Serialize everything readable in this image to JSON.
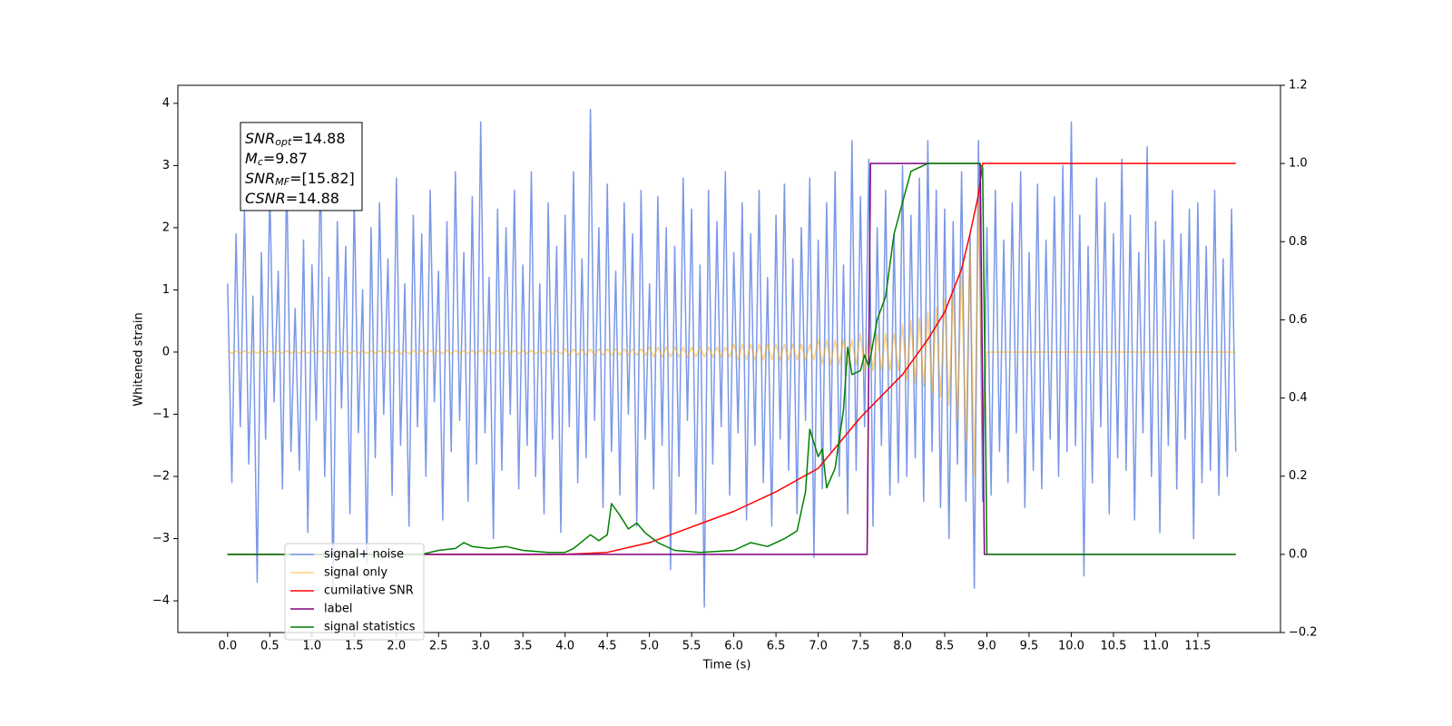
{
  "chart_data": {
    "type": "line",
    "xlabel": "Time (s)",
    "ylabel": "Whitened strain",
    "xlim": [
      -0.59,
      12.48
    ],
    "ylim": [
      -4.51,
      4.29
    ],
    "y2lim": [
      -0.2,
      1.2
    ],
    "xticks": [
      {
        "value": 0,
        "label": "0.0"
      },
      0.5,
      {
        "value": 1,
        "label": "1.0"
      },
      1.5,
      {
        "value": 2,
        "label": "2.0"
      },
      2.5,
      {
        "value": 3,
        "label": "3.0"
      },
      3.5,
      {
        "value": 4,
        "label": "4.0"
      },
      4.5,
      {
        "value": 5,
        "label": "5.0"
      },
      5.5,
      {
        "value": 6,
        "label": "6.0"
      },
      6.5,
      {
        "value": 7,
        "label": "7.0"
      },
      7.5,
      {
        "value": 8,
        "label": "8.0"
      },
      8.5,
      {
        "value": 9,
        "label": "9.0"
      },
      9.5,
      {
        "value": 10,
        "label": "10.0"
      },
      10.5,
      {
        "value": 11,
        "label": "11.0"
      },
      11.5
    ],
    "yticks": [
      {
        "value": -4,
        "label": "−4"
      },
      {
        "value": -3,
        "label": "−3"
      },
      {
        "value": -2,
        "label": "−2"
      },
      {
        "value": -1,
        "label": "−1"
      },
      0,
      1,
      2,
      3,
      4
    ],
    "y2ticks": [
      {
        "value": -0.2,
        "label": "−0.2"
      },
      {
        "value": 0,
        "label": "0.0"
      },
      0.2,
      0.4,
      0.6,
      0.8,
      {
        "value": 1,
        "label": "1.0"
      },
      1.2
    ],
    "annotation": [
      {
        "base": "SNR",
        "sub": "opt",
        "rest": "=14.88"
      },
      {
        "base": "M",
        "sub": "c",
        "rest": "=9.87"
      },
      {
        "base": "SNR",
        "sub": "MF",
        "rest": "=[15.82]"
      },
      {
        "base": "CSNR",
        "sub": null,
        "rest": "=14.88"
      }
    ],
    "x": [
      0,
      0.05,
      0.1,
      0.15,
      0.2,
      0.25,
      0.3,
      0.35,
      0.4,
      0.45,
      0.5,
      0.55,
      0.6,
      0.65,
      0.7,
      0.75,
      0.8,
      0.85,
      0.9,
      0.95,
      1,
      1.05,
      1.1,
      1.15,
      1.2,
      1.25,
      1.3,
      1.35,
      1.4,
      1.45,
      1.5,
      1.55,
      1.6,
      1.65,
      1.7,
      1.75,
      1.8,
      1.85,
      1.9,
      1.95,
      2,
      2.05,
      2.1,
      2.15,
      2.2,
      2.25,
      2.3,
      2.35,
      2.4,
      2.45,
      2.5,
      2.55,
      2.6,
      2.65,
      2.7,
      2.75,
      2.8,
      2.85,
      2.9,
      2.95,
      3,
      3.05,
      3.1,
      3.15,
      3.2,
      3.25,
      3.3,
      3.35,
      3.4,
      3.45,
      3.5,
      3.55,
      3.6,
      3.65,
      3.7,
      3.75,
      3.8,
      3.85,
      3.9,
      3.95,
      4,
      4.05,
      4.1,
      4.15,
      4.2,
      4.25,
      4.3,
      4.35,
      4.4,
      4.45,
      4.5,
      4.55,
      4.6,
      4.65,
      4.7,
      4.75,
      4.8,
      4.85,
      4.9,
      4.95,
      5,
      5.05,
      5.1,
      5.15,
      5.2,
      5.25,
      5.3,
      5.35,
      5.4,
      5.45,
      5.5,
      5.55,
      5.6,
      5.65,
      5.7,
      5.75,
      5.8,
      5.85,
      5.9,
      5.95,
      6,
      6.05,
      6.1,
      6.15,
      6.2,
      6.25,
      6.3,
      6.35,
      6.4,
      6.45,
      6.5,
      6.55,
      6.6,
      6.65,
      6.7,
      6.75,
      6.8,
      6.85,
      6.9,
      6.95,
      7,
      7.05,
      7.1,
      7.15,
      7.2,
      7.25,
      7.3,
      7.35,
      7.4,
      7.45,
      7.5,
      7.55,
      7.6,
      7.65,
      7.7,
      7.75,
      7.8,
      7.85,
      7.9,
      7.95,
      8,
      8.05,
      8.1,
      8.15,
      8.2,
      8.25,
      8.3,
      8.35,
      8.4,
      8.45,
      8.5,
      8.55,
      8.6,
      8.65,
      8.7,
      8.75,
      8.8,
      8.85,
      8.9,
      8.95,
      9,
      9.05,
      9.1,
      9.15,
      9.2,
      9.25,
      9.3,
      9.35,
      9.4,
      9.45,
      9.5,
      9.55,
      9.6,
      9.65,
      9.7,
      9.75,
      9.8,
      9.85,
      9.9,
      9.95,
      10,
      10.05,
      10.1,
      10.15,
      10.2,
      10.25,
      10.3,
      10.35,
      10.4,
      10.45,
      10.5,
      10.55,
      10.6,
      10.65,
      10.7,
      10.75,
      10.8,
      10.85,
      10.9,
      10.95,
      11,
      11.05,
      11.1,
      11.15,
      11.2,
      11.25,
      11.3,
      11.35,
      11.4,
      11.45,
      11.5,
      11.55,
      11.6,
      11.65,
      11.7,
      11.75,
      11.8,
      11.85,
      11.9,
      11.95
    ],
    "series": [
      {
        "name": "signal+ noise",
        "color": "#6b8de6",
        "opacity": 0.9,
        "values": [
          1.1,
          -2.1,
          1.9,
          -1.2,
          2.3,
          -1.8,
          0.9,
          -3.7,
          1.6,
          -1.4,
          2.6,
          -0.8,
          1.3,
          -2.2,
          2.9,
          -1.6,
          0.7,
          -1.9,
          1.8,
          -2.9,
          1.4,
          -1.1,
          3.0,
          -2.0,
          1.2,
          -3.8,
          2.1,
          -0.9,
          1.7,
          -2.6,
          2.5,
          -1.3,
          1.0,
          -3.4,
          2.0,
          -1.7,
          2.4,
          -1.0,
          1.5,
          -2.3,
          2.8,
          -1.5,
          1.1,
          -2.8,
          2.2,
          -1.2,
          1.9,
          -2.0,
          2.6,
          -0.8,
          1.3,
          -2.7,
          2.1,
          -1.6,
          2.9,
          -1.1,
          1.6,
          -2.4,
          2.5,
          -1.8,
          3.7,
          -1.3,
          1.2,
          -3.0,
          2.3,
          -1.9,
          2.0,
          -1.0,
          2.6,
          -2.2,
          1.4,
          -1.5,
          2.9,
          -2.0,
          1.1,
          -2.6,
          2.4,
          -1.4,
          1.7,
          -2.9,
          2.2,
          -1.2,
          2.9,
          -2.1,
          1.5,
          -1.7,
          3.9,
          -1.1,
          2.0,
          -2.5,
          2.7,
          -1.6,
          1.3,
          -2.3,
          2.4,
          -1.0,
          1.9,
          -2.8,
          2.6,
          -1.4,
          1.1,
          -2.2,
          2.5,
          -1.5,
          2.0,
          -3.5,
          1.7,
          -2.0,
          2.8,
          -1.1,
          2.3,
          -2.6,
          1.4,
          -4.1,
          2.6,
          -1.8,
          2.1,
          -1.2,
          2.9,
          -2.3,
          1.6,
          -1.3,
          2.4,
          -2.7,
          1.9,
          -1.5,
          2.6,
          -2.1,
          1.2,
          -2.8,
          2.2,
          -1.4,
          2.7,
          -1.9,
          1.5,
          -2.6,
          2.0,
          -1.1,
          2.8,
          -3.3,
          1.8,
          -2.2,
          2.4,
          -1.6,
          2.9,
          -2.0,
          1.4,
          -2.6,
          3.4,
          -1.9,
          2.5,
          -1.2,
          3.1,
          -2.8,
          2.0,
          -1.5,
          2.6,
          -2.3,
          1.9,
          -2.1,
          3.0,
          -2.0,
          2.2,
          -1.7,
          2.8,
          -2.4,
          3.4,
          -1.6,
          2.6,
          -2.5,
          2.3,
          -3.0,
          2.1,
          -1.8,
          2.9,
          -2.4,
          1.9,
          -3.8,
          3.4,
          -2.4,
          2.0,
          -2.3,
          2.6,
          -1.6,
          1.8,
          -2.1,
          2.4,
          -1.3,
          2.9,
          -2.5,
          1.6,
          -1.9,
          2.7,
          -2.2,
          1.8,
          -1.4,
          2.5,
          -2.0,
          3.0,
          -1.6,
          3.7,
          -1.5,
          2.2,
          -3.6,
          1.7,
          -2.1,
          2.8,
          -1.2,
          2.4,
          -2.6,
          1.9,
          -1.7,
          3.1,
          -1.9,
          2.2,
          -2.7,
          1.6,
          -1.3,
          3.3,
          -2.0,
          2.1,
          -2.9,
          1.8,
          -1.5,
          2.6,
          -2.2,
          1.9,
          -1.4,
          2.3,
          -3.0,
          2.4,
          -2.1,
          1.7,
          -1.9,
          2.6,
          -2.3,
          1.5,
          -2.0,
          2.3,
          -1.6
        ]
      },
      {
        "name": "signal only",
        "color": "#ffa500",
        "opacity": 0.5,
        "values": [
          0.02,
          -0.02,
          0.02,
          -0.02,
          0.02,
          -0.02,
          0.02,
          -0.02,
          0.02,
          -0.02,
          0.02,
          -0.02,
          0.02,
          -0.02,
          0.02,
          -0.02,
          0.02,
          -0.02,
          0.02,
          -0.02,
          0.02,
          -0.02,
          0.02,
          -0.02,
          0.02,
          -0.02,
          0.02,
          -0.02,
          0.02,
          -0.02,
          0.02,
          -0.02,
          0.02,
          -0.02,
          0.02,
          -0.02,
          0.02,
          -0.02,
          0.02,
          -0.02,
          0.03,
          -0.03,
          0.03,
          -0.03,
          0.03,
          -0.03,
          0.03,
          -0.03,
          0.03,
          -0.03,
          0.03,
          -0.03,
          0.03,
          -0.03,
          0.03,
          -0.03,
          0.03,
          -0.03,
          0.03,
          -0.03,
          0.03,
          -0.03,
          0.03,
          -0.03,
          0.03,
          -0.03,
          0.03,
          -0.03,
          0.03,
          -0.03,
          0.03,
          -0.03,
          0.03,
          -0.03,
          0.03,
          -0.03,
          0.03,
          -0.03,
          0.03,
          -0.03,
          0.05,
          -0.05,
          0.05,
          -0.05,
          0.05,
          -0.05,
          0.05,
          -0.05,
          0.05,
          -0.05,
          0.05,
          -0.05,
          0.05,
          -0.05,
          0.05,
          -0.05,
          0.05,
          -0.05,
          0.05,
          -0.05,
          0.08,
          -0.08,
          0.08,
          -0.08,
          0.08,
          -0.08,
          0.08,
          -0.08,
          0.08,
          -0.08,
          0.08,
          -0.08,
          0.08,
          -0.08,
          0.08,
          -0.08,
          0.08,
          -0.08,
          0.08,
          -0.08,
          0.13,
          -0.13,
          0.13,
          -0.13,
          0.13,
          -0.13,
          0.13,
          -0.13,
          0.13,
          -0.13,
          0.13,
          -0.13,
          0.13,
          -0.13,
          0.13,
          -0.13,
          0.13,
          -0.13,
          0.13,
          -0.13,
          0.2,
          -0.2,
          0.2,
          -0.2,
          0.2,
          -0.2,
          0.2,
          -0.2,
          0.2,
          -0.2,
          0.3,
          -0.3,
          0.3,
          -0.3,
          0.3,
          -0.3,
          0.3,
          -0.3,
          0.3,
          -0.3,
          0.45,
          -0.45,
          0.5,
          -0.5,
          0.55,
          -0.55,
          0.65,
          -0.65,
          0.72,
          -0.72,
          0.85,
          -0.85,
          1.0,
          -1.1,
          1.3,
          -1.45,
          1.7,
          -2.0,
          2.4,
          -1.2,
          0,
          0,
          0,
          0,
          0,
          0,
          0,
          0,
          0,
          0,
          0,
          0,
          0,
          0,
          0,
          0,
          0,
          0,
          0,
          0,
          0,
          0,
          0,
          0,
          0,
          0,
          0,
          0,
          0,
          0,
          0,
          0,
          0,
          0,
          0,
          0,
          0,
          0,
          0,
          0,
          0,
          0,
          0,
          0,
          0,
          0,
          0,
          0,
          0,
          0,
          0,
          0,
          0,
          0,
          0,
          0,
          0,
          0,
          0,
          0
        ]
      },
      {
        "name": "cumilative SNR",
        "color": "#ff0000",
        "axis": "y2",
        "x": [
          0,
          4,
          4.5,
          5,
          5.5,
          6,
          6.5,
          7,
          7.5,
          8,
          8.3,
          8.5,
          8.7,
          8.8,
          8.9,
          8.95,
          11.95
        ],
        "values": [
          0,
          0,
          0.005,
          0.03,
          0.07,
          0.11,
          0.16,
          0.22,
          0.35,
          0.46,
          0.55,
          0.62,
          0.73,
          0.82,
          0.92,
          1.0,
          1.0
        ]
      },
      {
        "name": "label",
        "color": "#800080",
        "axis": "y2",
        "x": [
          0,
          7.58,
          7.62,
          8.92,
          8.97,
          11.95
        ],
        "values": [
          0,
          0,
          1,
          1,
          0,
          0
        ]
      },
      {
        "name": "signal statistics",
        "color": "#008000",
        "axis": "y2",
        "x": [
          0,
          2.3,
          2.5,
          2.7,
          2.8,
          2.9,
          3.1,
          3.3,
          3.5,
          3.8,
          4.0,
          4.1,
          4.3,
          4.4,
          4.5,
          4.55,
          4.65,
          4.75,
          4.85,
          4.95,
          5.1,
          5.3,
          5.6,
          6.0,
          6.2,
          6.4,
          6.6,
          6.75,
          6.85,
          6.9,
          7.0,
          7.05,
          7.1,
          7.2,
          7.3,
          7.35,
          7.4,
          7.5,
          7.55,
          7.6,
          7.7,
          7.8,
          7.9,
          8.0,
          8.1,
          8.3,
          8.9,
          8.95,
          9.0,
          11.95
        ],
        "values": [
          0,
          0,
          0.01,
          0.015,
          0.03,
          0.02,
          0.015,
          0.02,
          0.01,
          0.005,
          0.005,
          0.015,
          0.05,
          0.035,
          0.05,
          0.13,
          0.1,
          0.065,
          0.08,
          0.055,
          0.03,
          0.01,
          0.005,
          0.01,
          0.03,
          0.02,
          0.04,
          0.06,
          0.16,
          0.32,
          0.25,
          0.27,
          0.17,
          0.22,
          0.37,
          0.53,
          0.46,
          0.47,
          0.51,
          0.48,
          0.6,
          0.66,
          0.82,
          0.9,
          0.98,
          1.0,
          1.0,
          0.99,
          0,
          0
        ]
      }
    ]
  }
}
